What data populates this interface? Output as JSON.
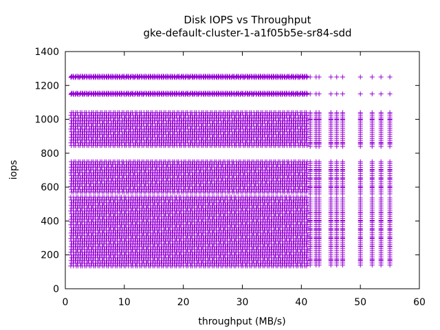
{
  "chart_data": {
    "type": "scatter",
    "title": "Disk IOPS vs Throughput",
    "subtitle": "gke-default-cluster-1-a1f05b5e-sr84-sdd",
    "xlabel": "throughput (MB/s)",
    "ylabel": "iops",
    "xlim": [
      0,
      60
    ],
    "ylim": [
      0,
      1400
    ],
    "xticks": [
      "0",
      "10",
      "20",
      "30",
      "40",
      "50",
      "60"
    ],
    "yticks": [
      "0",
      "200",
      "400",
      "600",
      "800",
      "1000",
      "1200",
      "1400"
    ],
    "grid": false,
    "legend": "none",
    "marker": "plus",
    "color": "#9400d3",
    "series": [
      {
        "bands": [
          {
            "y": [
              1245,
              1255
            ],
            "x": [
              1.0,
              41.0
            ]
          },
          {
            "y": [
              1145,
              1155
            ],
            "x": [
              1.0,
              41.0
            ]
          },
          {
            "y": [
              840,
              1040
            ],
            "x": [
              1.0,
              41.0
            ]
          },
          {
            "y": [
              560,
              750
            ],
            "x": [
              1.0,
              41.0
            ]
          },
          {
            "y": [
              130,
              540
            ],
            "x": [
              1.0,
              41.0
            ]
          }
        ],
        "sparse_x": [
          41.5,
          42.5,
          43.0,
          45.0,
          46.0,
          47.0,
          50.0,
          52.0,
          53.5,
          55.0
        ],
        "sparse_levels": [
          1250,
          1150,
          1040,
          1000,
          960,
          900,
          860,
          840,
          750,
          700,
          650,
          600,
          560,
          500,
          450,
          400,
          350,
          300,
          250,
          200,
          170,
          140
        ],
        "sparse_top_x": [
          41.0,
          42.0,
          43.0,
          45.0,
          46.0,
          47.0,
          50.0,
          52.0,
          53.5,
          55.0
        ]
      }
    ]
  }
}
